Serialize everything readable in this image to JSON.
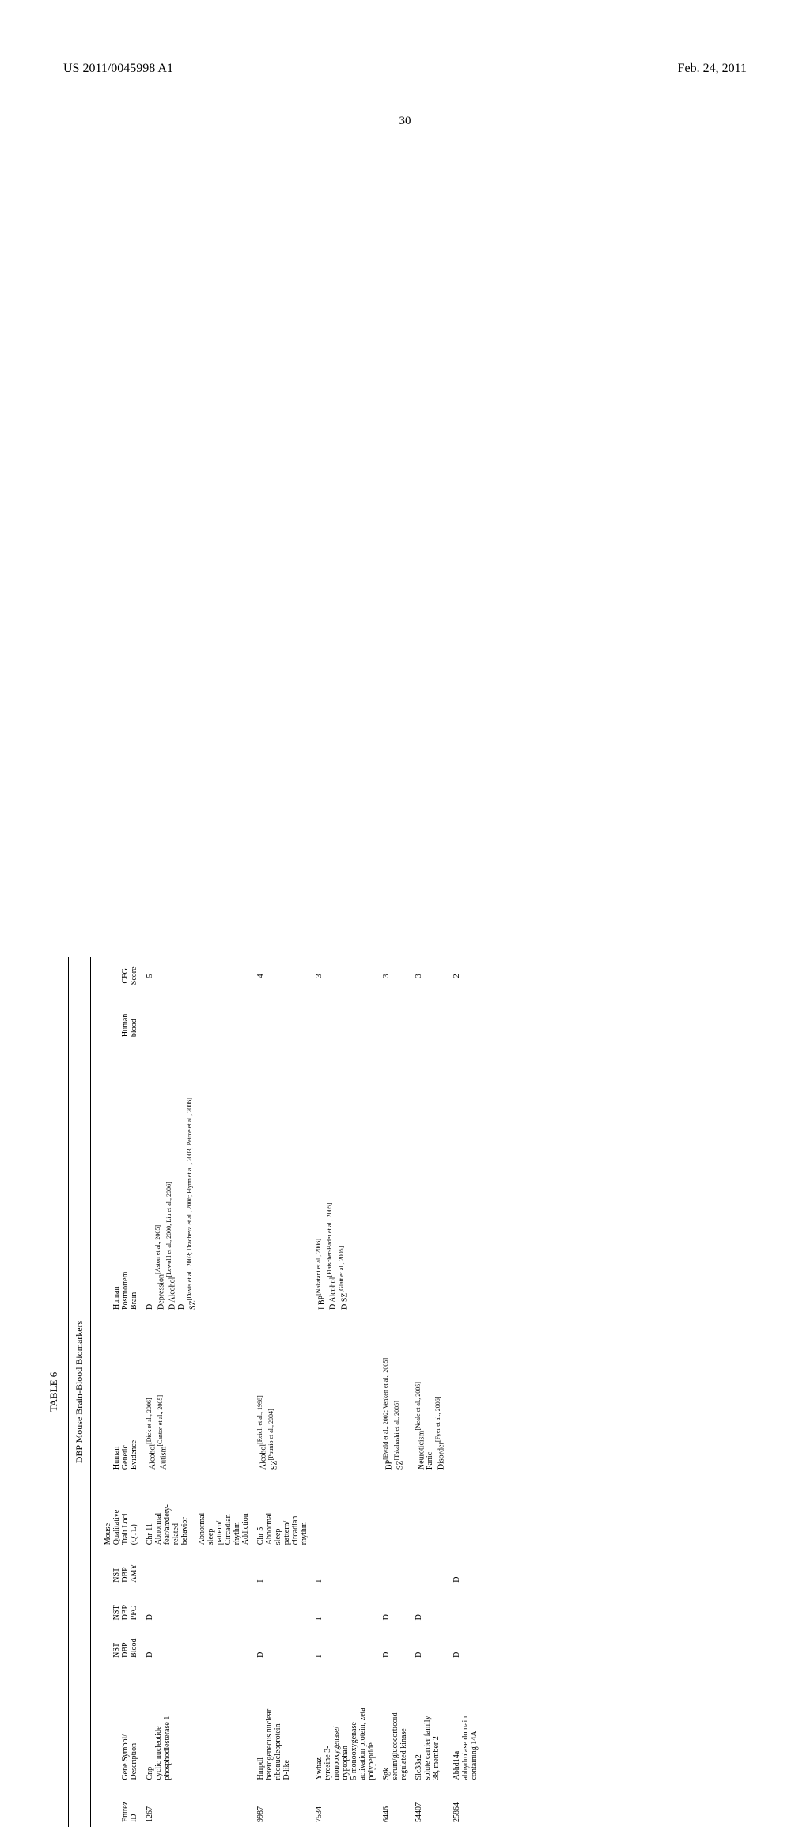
{
  "header": {
    "left": "US 2011/0045998 A1",
    "right": "Feb. 24, 2011"
  },
  "page_number": "30",
  "table": {
    "caption": "TABLE 6",
    "subcaption": "DBP Mouse Brain-Blood Biomarkers",
    "columns": {
      "entrez_id": "Entrez\nID",
      "gene_symbol": "Gene Symbol/\nDescription",
      "nst_dbp_blood": "NST\nDBP\nBlood",
      "nst_dbp_pfc": "NST\nDBP\nPFC",
      "nst_dbp_amy": "NST\nDBP\nAMY",
      "mouse_qtl": "Mouse\nQualitative\nTrait Loci\n(QTL)",
      "human_genetic": "Human\nGenetic\nEvidence",
      "human_postmortem": "Human\nPostmortem\nBrain",
      "human_blood": "Human\nblood",
      "cfg_score": "CFG\nScore"
    },
    "rows": [
      {
        "id": "1267",
        "desc": "Cnp\ncyclic nucleotide\nphosphodiesterase 1",
        "blood": "D",
        "pfc": "D",
        "amy": "",
        "qtl": "Chr 11\nAbnormal\nfear/anxiety-\nrelated\nbehavior\n\nAbnormal\nsleep\npattern/\nCircadian\nrhythm\nAddiction",
        "hge": "Alcohol[Dick et al., 2006]\nAutism[Cantor et al., 2005]",
        "hpb": "D\nDepression[Aston et al., 2005]\nD Alcohol[Lewohl et al., 2000; Liu et al., 2006]\nD\nSZ[Davis et al., 2003; Dracheva et al., 2006; Flynn et al., 2003; Peirce et al., 2006]",
        "hb": "",
        "cfg": "5"
      },
      {
        "id": "9987",
        "desc": "Hnrpdl\nheterogeneous nuclear\nribonucleoprotein\nD-like",
        "blood": "D",
        "pfc": "",
        "amy": "I",
        "qtl": "Chr 5\nAbnormal\nsleep\npattern/\ncircadian\nrhythm",
        "hge": "Alcohol[Reich et al., 1998]\nSZ[Paunio et al., 2004]",
        "hpb": "",
        "hb": "",
        "cfg": "4"
      },
      {
        "id": "7534",
        "desc": "Ywhaz\ntyrosine 3-\nmonooxygenase/\ntryptophan\n5-monooxygenase\nactivation protein, zeta\npolypeptide",
        "blood": "I",
        "pfc": "I",
        "amy": "I",
        "qtl": "",
        "hge": "",
        "hpb": "I BP[Nakatani et al., 2006]\nD Alcohol[Flatscher-Bader et al., 2005]\nD SZ[Glatt et al., 2005]",
        "hb": "",
        "cfg": "3"
      },
      {
        "id": "6446",
        "desc": "Sgk\nserum/glucocorticoid\nregulated kinase",
        "blood": "D",
        "pfc": "D",
        "amy": "",
        "qtl": "",
        "hge": "BP[Ewald et al., 2002; Venken et al., 2005]\nSZ[Takahashi et al., 2005]",
        "hpb": "",
        "hb": "",
        "cfg": "3"
      },
      {
        "id": "54407",
        "desc": "Slc38a2\nsolute carrier family\n38, member 2",
        "blood": "D",
        "pfc": "D",
        "amy": "",
        "qtl": "",
        "hge": "Neuroticism[Neale et al., 2005]\nPanic\nDisorder[Fyer et al., 2006]",
        "hpb": "",
        "hb": "",
        "cfg": "3"
      },
      {
        "id": "25864",
        "desc": "Abhd14a\nabhydrolase domain\ncontaining 14A",
        "blood": "D",
        "pfc": "",
        "amy": "D",
        "qtl": "",
        "hge": "",
        "hpb": "",
        "hb": "",
        "cfg": "2"
      }
    ]
  }
}
